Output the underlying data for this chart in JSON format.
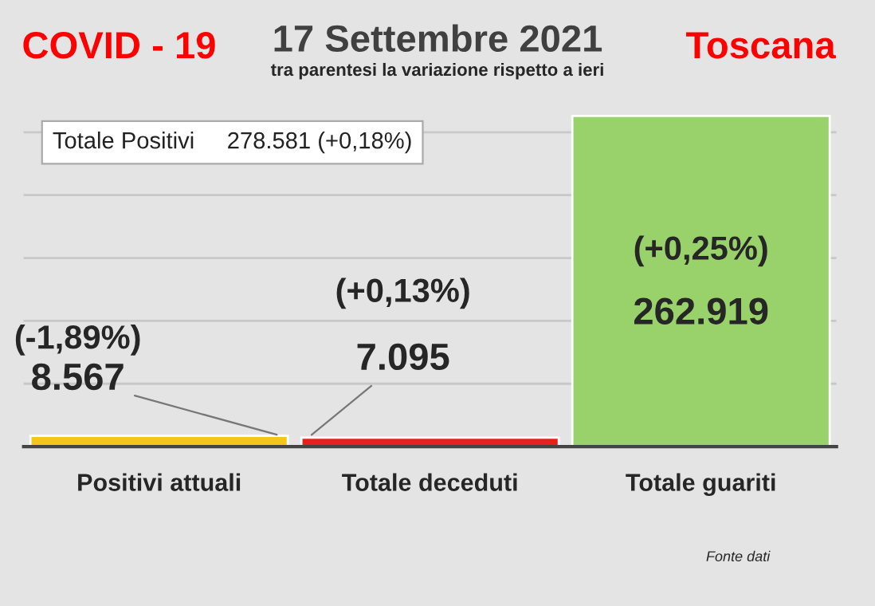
{
  "chart_data": {
    "type": "bar",
    "title": "17 Settembre 2021",
    "subtitle": "tra parentesi la variazione rispetto a ieri",
    "categories": [
      "Positivi attuali",
      "Totale deceduti",
      "Totale guariti"
    ],
    "values": [
      8567,
      7095,
      262919
    ],
    "colors": [
      "#f5c518",
      "#e8201c",
      "#99d16a"
    ],
    "value_labels": [
      "8.567",
      "7.095",
      "262.919"
    ],
    "annotations": [
      "COVID - 19",
      "Toscana",
      "Totale Positivi     278.581 (+0,18%)",
      "Fonte dati",
      "(-1,89%)",
      "(+0,13%)",
      "(+0,25%)"
    ],
    "ylim": [
      0,
      265000
    ],
    "yticks": [
      {
        "value": 0,
        "label": null
      },
      {
        "value": 50000,
        "label": null
      },
      {
        "value": 100000,
        "label": null
      },
      {
        "value": 150000,
        "label": null
      },
      {
        "value": 200000,
        "label": null
      },
      {
        "value": 250000,
        "label": null
      }
    ],
    "grid": "y",
    "tick_labels": "x",
    "legend": false
  }
}
